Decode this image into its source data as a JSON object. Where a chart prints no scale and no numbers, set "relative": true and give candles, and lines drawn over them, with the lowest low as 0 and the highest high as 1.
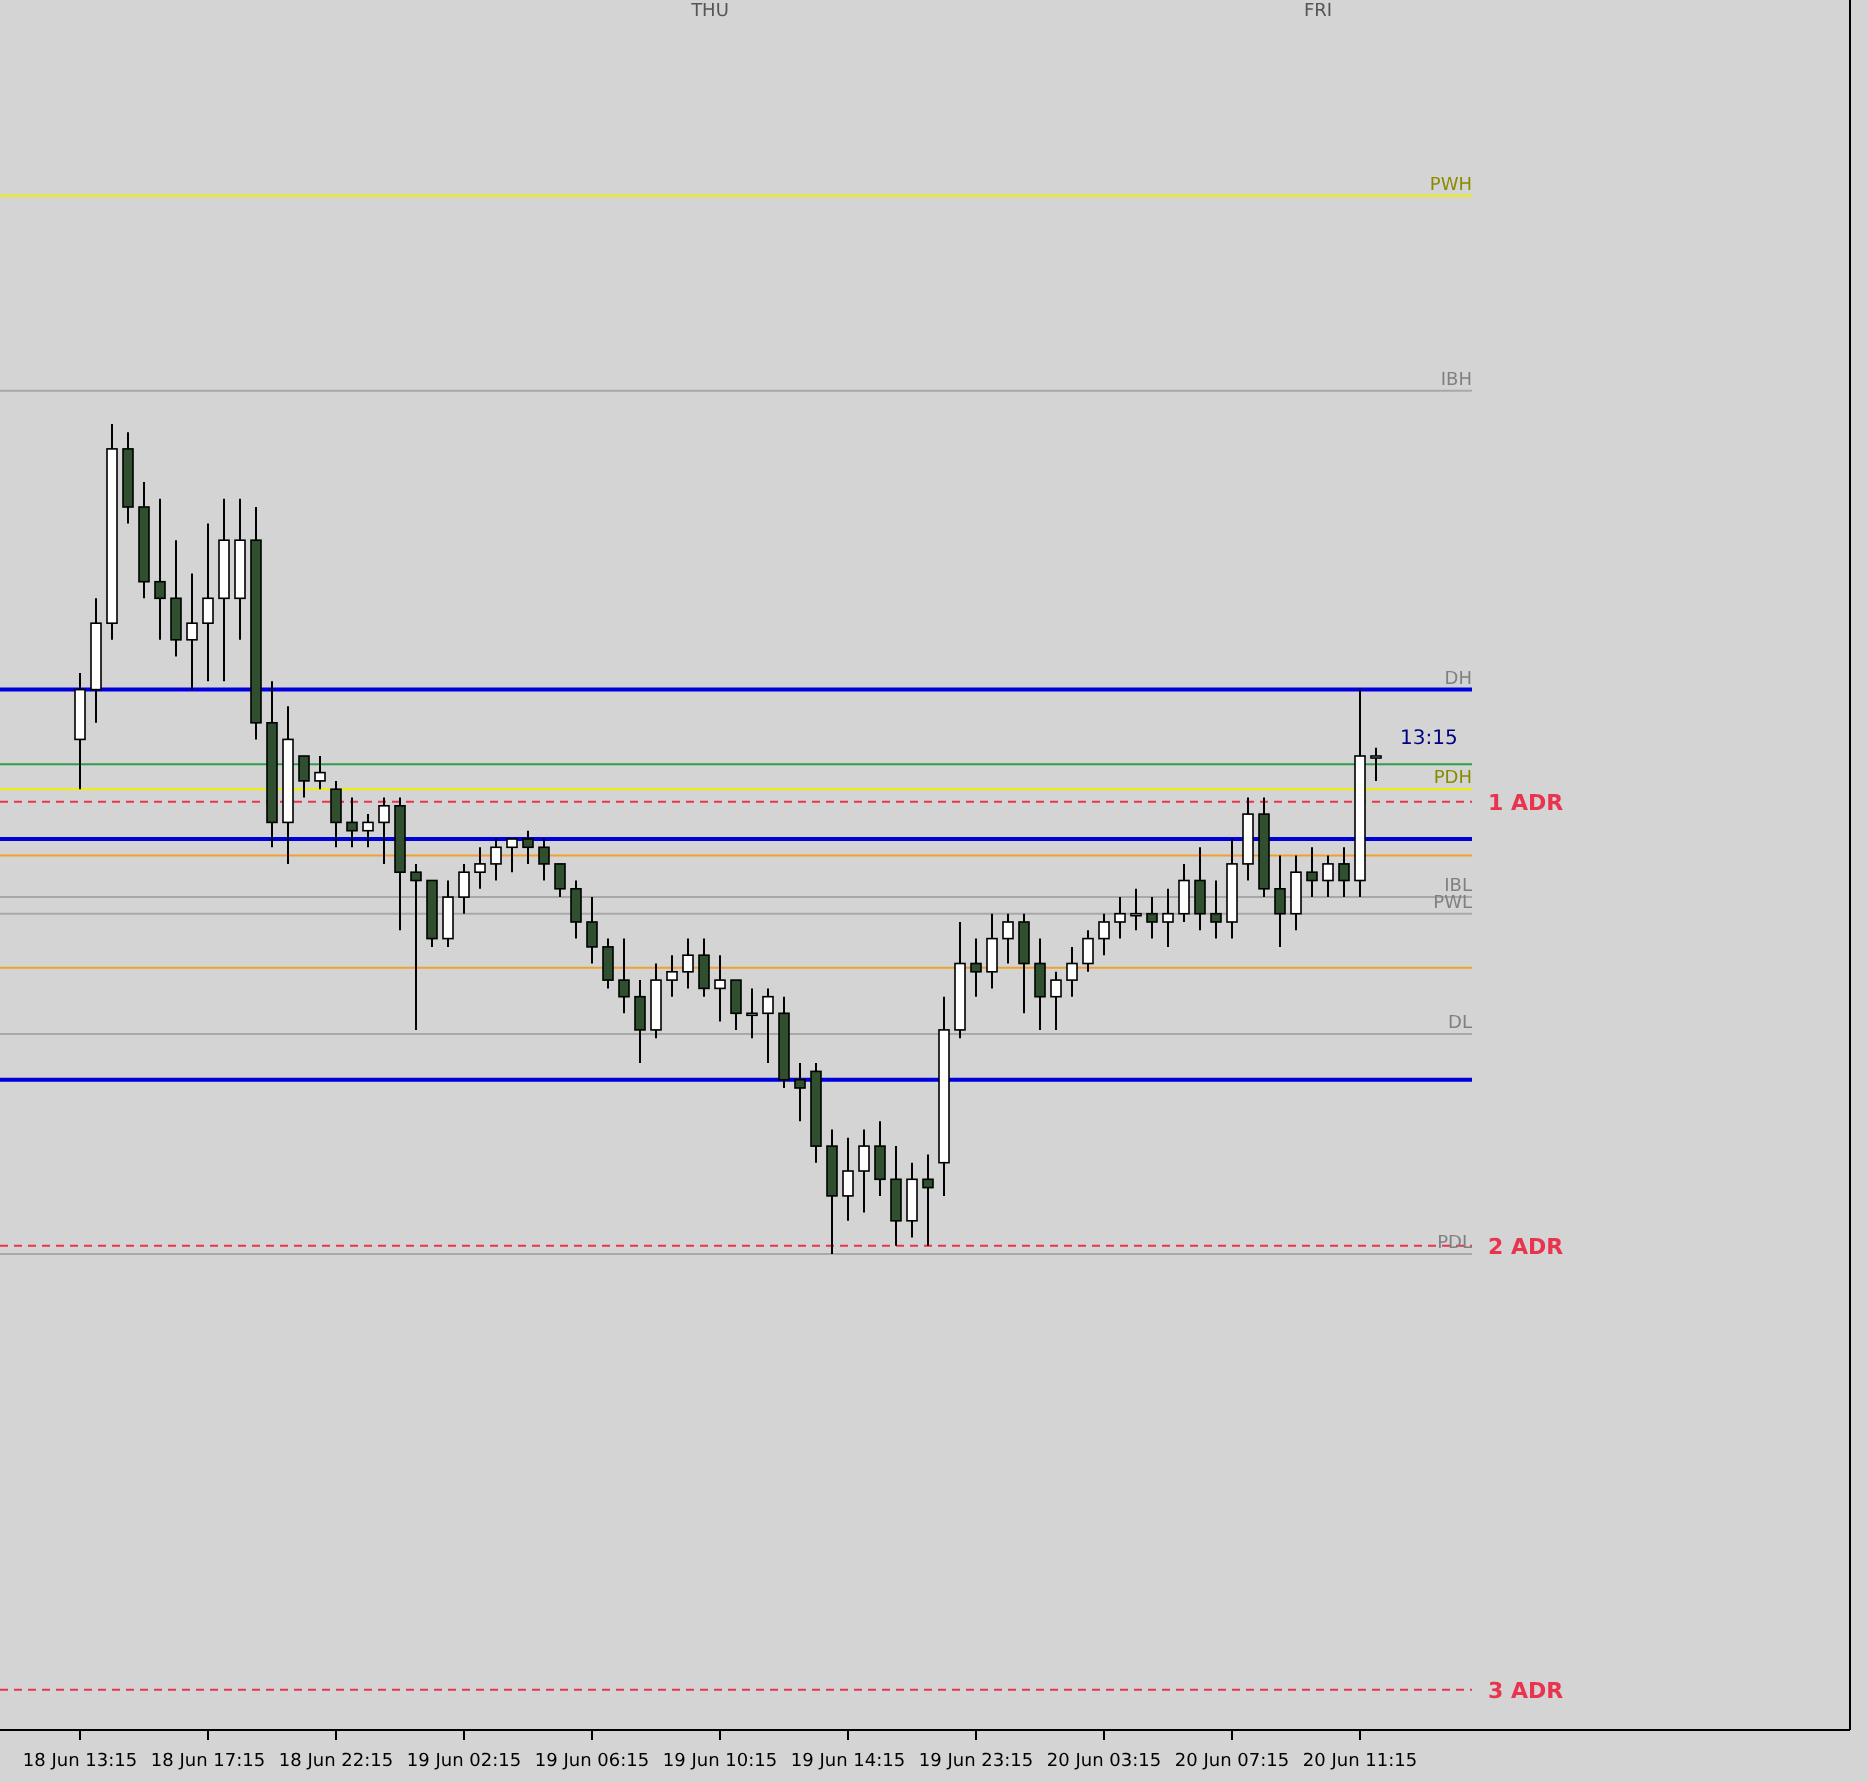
{
  "chart_data": {
    "type": "candlestick",
    "relative": true,
    "categories": [
      "18 Jun 13:15",
      null,
      null,
      null,
      null,
      null,
      null,
      null,
      "18 Jun 17:15",
      null,
      null,
      null,
      null,
      null,
      null,
      null,
      "18 Jun 22:15",
      null,
      null,
      null,
      null,
      null,
      null,
      null,
      "19 Jun 02:15",
      null,
      null,
      null,
      null,
      null,
      null,
      null,
      "19 Jun 06:15",
      null,
      null,
      null,
      null,
      null,
      null,
      null,
      "19 Jun 10:15",
      null,
      null,
      null,
      null,
      null,
      null,
      null,
      "19 Jun 14:15",
      null,
      null,
      null,
      null,
      null,
      null,
      null,
      "19 Jun 23:15",
      null,
      null,
      null,
      null,
      null,
      null,
      null,
      "20 Jun 03:15",
      null,
      null,
      null,
      null,
      null,
      null,
      null,
      "20 Jun 07:15",
      null,
      null,
      null,
      null,
      null,
      null,
      null,
      "20 Jun 11:15",
      null
    ],
    "ohlc": [
      [
        0.62,
        0.7,
        0.56,
        0.68
      ],
      [
        0.68,
        0.79,
        0.64,
        0.76
      ],
      [
        0.76,
        1,
        0.74,
        0.97
      ],
      [
        0.97,
        0.99,
        0.88,
        0.9
      ],
      [
        0.9,
        0.93,
        0.79,
        0.81
      ],
      [
        0.81,
        0.91,
        0.74,
        0.79
      ],
      [
        0.79,
        0.86,
        0.72,
        0.74
      ],
      [
        0.74,
        0.82,
        0.68,
        0.76
      ],
      [
        0.76,
        0.88,
        0.69,
        0.79
      ],
      [
        0.79,
        0.91,
        0.69,
        0.86
      ],
      [
        0.79,
        0.91,
        0.74,
        0.86
      ],
      [
        0.86,
        0.9,
        0.62,
        0.64
      ],
      [
        0.64,
        0.69,
        0.49,
        0.52
      ],
      [
        0.52,
        0.66,
        0.47,
        0.62
      ],
      [
        0.6,
        0.6,
        0.55,
        0.57
      ],
      [
        0.57,
        0.6,
        0.56,
        0.58
      ],
      [
        0.56,
        0.57,
        0.49,
        0.52
      ],
      [
        0.52,
        0.55,
        0.49,
        0.51
      ],
      [
        0.51,
        0.53,
        0.49,
        0.52
      ],
      [
        0.52,
        0.55,
        0.47,
        0.54
      ],
      [
        0.54,
        0.55,
        0.39,
        0.46
      ],
      [
        0.46,
        0.47,
        0.27,
        0.45
      ],
      [
        0.45,
        0.45,
        0.37,
        0.38
      ],
      [
        0.38,
        0.45,
        0.37,
        0.43
      ],
      [
        0.43,
        0.47,
        0.41,
        0.46
      ],
      [
        0.46,
        0.49,
        0.44,
        0.47
      ],
      [
        0.47,
        0.5,
        0.45,
        0.49
      ],
      [
        0.49,
        0.5,
        0.46,
        0.5
      ],
      [
        0.5,
        0.51,
        0.47,
        0.49
      ],
      [
        0.49,
        0.5,
        0.45,
        0.47
      ],
      [
        0.47,
        0.47,
        0.43,
        0.44
      ],
      [
        0.44,
        0.45,
        0.38,
        0.4
      ],
      [
        0.4,
        0.43,
        0.35,
        0.37
      ],
      [
        0.37,
        0.38,
        0.32,
        0.33
      ],
      [
        0.33,
        0.38,
        0.29,
        0.31
      ],
      [
        0.31,
        0.33,
        0.23,
        0.27
      ],
      [
        0.27,
        0.35,
        0.26,
        0.33
      ],
      [
        0.33,
        0.36,
        0.31,
        0.34
      ],
      [
        0.34,
        0.38,
        0.32,
        0.36
      ],
      [
        0.36,
        0.38,
        0.31,
        0.32
      ],
      [
        0.32,
        0.36,
        0.28,
        0.33
      ],
      [
        0.33,
        0.33,
        0.27,
        0.29
      ],
      [
        0.29,
        0.32,
        0.26,
        0.29
      ],
      [
        0.29,
        0.32,
        0.23,
        0.31
      ],
      [
        0.29,
        0.31,
        0.2,
        0.21
      ],
      [
        0.21,
        0.23,
        0.16,
        0.2
      ],
      [
        0.22,
        0.23,
        0.11,
        0.13
      ],
      [
        0.13,
        0.15,
        0,
        0.07
      ],
      [
        0.07,
        0.14,
        0.04,
        0.1
      ],
      [
        0.1,
        0.15,
        0.05,
        0.13
      ],
      [
        0.13,
        0.16,
        0.07,
        0.09
      ],
      [
        0.09,
        0.13,
        0.01,
        0.04
      ],
      [
        0.04,
        0.11,
        0.02,
        0.09
      ],
      [
        0.09,
        0.12,
        0.01,
        0.08
      ],
      [
        0.11,
        0.31,
        0.07,
        0.27
      ],
      [
        0.27,
        0.4,
        0.26,
        0.35
      ],
      [
        0.35,
        0.38,
        0.31,
        0.34
      ],
      [
        0.34,
        0.41,
        0.32,
        0.38
      ],
      [
        0.38,
        0.41,
        0.35,
        0.4
      ],
      [
        0.4,
        0.41,
        0.29,
        0.35
      ],
      [
        0.35,
        0.38,
        0.27,
        0.31
      ],
      [
        0.31,
        0.34,
        0.27,
        0.33
      ],
      [
        0.33,
        0.37,
        0.31,
        0.35
      ],
      [
        0.35,
        0.39,
        0.34,
        0.38
      ],
      [
        0.38,
        0.41,
        0.36,
        0.4
      ],
      [
        0.4,
        0.43,
        0.38,
        0.41
      ],
      [
        0.41,
        0.44,
        0.39,
        0.41
      ],
      [
        0.41,
        0.43,
        0.38,
        0.4
      ],
      [
        0.4,
        0.44,
        0.37,
        0.41
      ],
      [
        0.41,
        0.47,
        0.4,
        0.45
      ],
      [
        0.45,
        0.49,
        0.39,
        0.41
      ],
      [
        0.41,
        0.45,
        0.38,
        0.4
      ],
      [
        0.4,
        0.5,
        0.38,
        0.47
      ],
      [
        0.47,
        0.55,
        0.45,
        0.53
      ],
      [
        0.53,
        0.55,
        0.43,
        0.44
      ],
      [
        0.44,
        0.48,
        0.37,
        0.41
      ],
      [
        0.41,
        0.48,
        0.39,
        0.46
      ],
      [
        0.46,
        0.49,
        0.43,
        0.45
      ],
      [
        0.45,
        0.48,
        0.43,
        0.47
      ],
      [
        0.47,
        0.49,
        0.43,
        0.45
      ],
      [
        0.45,
        0.68,
        0.43,
        0.6
      ],
      [
        0.6,
        0.61,
        0.57,
        0.6
      ]
    ],
    "ref_lines": [
      {
        "axis": "y",
        "value": 1.275,
        "label": "PWH",
        "color": "#f0f000",
        "line_style": "solid"
      },
      {
        "axis": "y",
        "value": 1.04,
        "label": "IBH",
        "color": "#a8a8a8",
        "line_style": "solid"
      },
      {
        "axis": "y",
        "value": 0.68,
        "label": "DH",
        "color": "#0000dd",
        "line_style": "solid"
      },
      {
        "axis": "y",
        "value": 0.59,
        "color": "#2e9e4a",
        "line_style": "solid"
      },
      {
        "axis": "y",
        "value": 0.56,
        "label": "PDH",
        "color": "#f0f000",
        "line_style": "solid"
      },
      {
        "axis": "y",
        "value": 0.545,
        "label": "1 ADR",
        "color": "#e8344e",
        "line_style": "dashed"
      },
      {
        "axis": "y",
        "value": 0.5,
        "color": "#0000dd",
        "line_style": "solid"
      },
      {
        "axis": "y",
        "value": 0.48,
        "color": "#f0a030",
        "line_style": "solid"
      },
      {
        "axis": "y",
        "value": 0.43,
        "label": "IBL",
        "color": "#a8a8a8",
        "line_style": "solid"
      },
      {
        "axis": "y",
        "value": 0.41,
        "label": "PWL",
        "color": "#a8a8a8",
        "line_style": "solid"
      },
      {
        "axis": "y",
        "value": 0.345,
        "color": "#f0a030",
        "line_style": "solid"
      },
      {
        "axis": "y",
        "value": 0.265,
        "label": "DL",
        "color": "#a8a8a8",
        "line_style": "solid"
      },
      {
        "axis": "y",
        "value": 0.21,
        "color": "#0000dd",
        "line_style": "solid"
      },
      {
        "axis": "y",
        "value": 0.01,
        "label": "2 ADR",
        "color": "#e8344e",
        "line_style": "dashed"
      },
      {
        "axis": "y",
        "value": 0,
        "label": "PDL",
        "color": "#a8a8a8",
        "line_style": "solid"
      },
      {
        "axis": "y",
        "value": -0.525,
        "label": "3 ADR",
        "color": "#e8344e",
        "line_style": "dashed"
      }
    ],
    "annotations": [
      "THU",
      "FRI",
      "13:15"
    ]
  }
}
